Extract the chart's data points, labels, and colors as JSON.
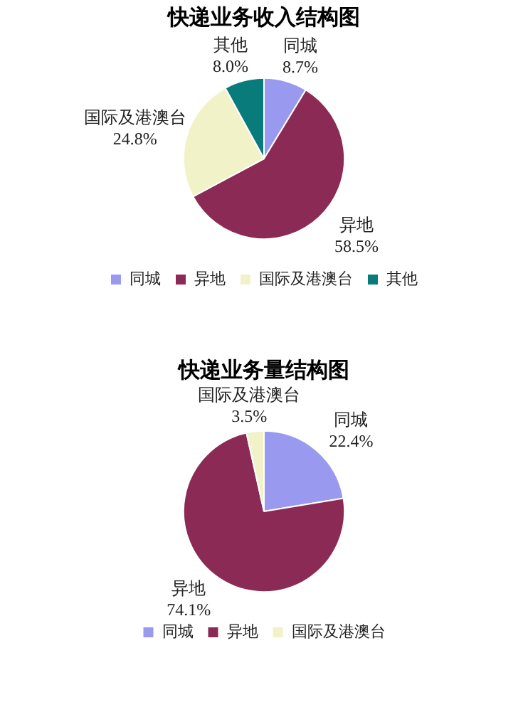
{
  "chart_data": [
    {
      "type": "pie",
      "title": "快递业务收入结构图",
      "categories": [
        "同城",
        "异地",
        "国际及港澳台",
        "其他"
      ],
      "values": [
        8.7,
        58.5,
        24.8,
        8.0
      ],
      "value_labels": [
        "8.7%",
        "58.5%",
        "24.8%",
        "8.0%"
      ],
      "colors": [
        "#9999f0",
        "#8b2a55",
        "#f2f2c8",
        "#0a7b7b"
      ],
      "legend": "bottom"
    },
    {
      "type": "pie",
      "title": "快递业务量结构图",
      "categories": [
        "同城",
        "异地",
        "国际及港澳台"
      ],
      "values": [
        22.4,
        74.1,
        3.5
      ],
      "value_labels": [
        "22.4%",
        "74.1%",
        "3.5%"
      ],
      "colors": [
        "#9999f0",
        "#8b2a55",
        "#f2f2c8"
      ],
      "legend": "bottom"
    }
  ]
}
